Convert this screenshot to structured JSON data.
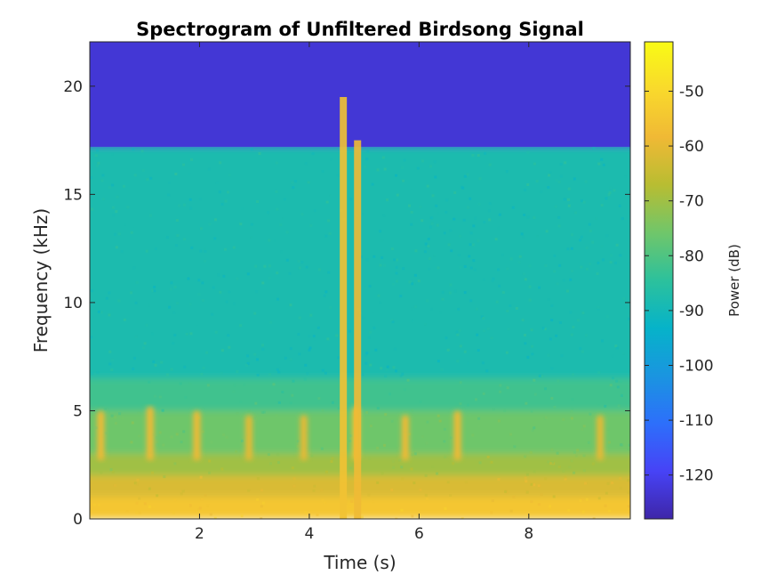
{
  "chart_data": {
    "type": "heatmap",
    "title": "Spectrogram of Unfiltered Birdsong Signal",
    "xlabel": "Time (s)",
    "ylabel": "Frequency (kHz)",
    "xlim": [
      0,
      9.85
    ],
    "ylim": [
      0,
      22.05
    ],
    "xticks": [
      2,
      4,
      6,
      8
    ],
    "xtick_labels": [
      "2",
      "4",
      "6",
      "8"
    ],
    "yticks": [
      0,
      5,
      10,
      15,
      20
    ],
    "ytick_labels": [
      "0",
      "5",
      "10",
      "15",
      "20"
    ],
    "colorbar": {
      "label": "Power (dB)",
      "colormap": "parula",
      "limits": [
        -128,
        -41
      ],
      "ticks": [
        -120,
        -110,
        -100,
        -90,
        -80,
        -70,
        -60,
        -50
      ],
      "tick_labels": [
        "-120",
        "-110",
        "-100",
        "-90",
        "-80",
        "-70",
        "-60",
        "-50"
      ],
      "colors": [
        "#3e26a8",
        "#4743f6",
        "#2d6ffb",
        "#1a95e0",
        "#06b3c9",
        "#2cc19c",
        "#70c66a",
        "#b8bd32",
        "#f0b935",
        "#f9d92c",
        "#f9fb15"
      ]
    },
    "bands": [
      {
        "freq_khz": [
          0,
          1
        ],
        "power_db": -55
      },
      {
        "freq_khz": [
          1,
          2
        ],
        "power_db": -62
      },
      {
        "freq_khz": [
          2,
          3
        ],
        "power_db": -70
      },
      {
        "freq_khz": [
          3,
          5
        ],
        "power_db": -76
      },
      {
        "freq_khz": [
          5,
          6.5
        ],
        "power_db": -82
      },
      {
        "freq_khz": [
          6.5,
          17.2
        ],
        "power_db": -88
      },
      {
        "freq_khz": [
          17.2,
          22.05
        ],
        "power_db": -123
      }
    ],
    "calls": [
      {
        "time_s": 0.2,
        "freq_khz": [
          2.7,
          5.0
        ],
        "power_db": -58
      },
      {
        "time_s": 1.1,
        "freq_khz": [
          2.7,
          5.2
        ],
        "power_db": -58
      },
      {
        "time_s": 1.95,
        "freq_khz": [
          2.7,
          5.0
        ],
        "power_db": -58
      },
      {
        "time_s": 2.9,
        "freq_khz": [
          2.7,
          4.8
        ],
        "power_db": -60
      },
      {
        "time_s": 3.9,
        "freq_khz": [
          2.7,
          4.8
        ],
        "power_db": -60
      },
      {
        "time_s": 4.85,
        "freq_khz": [
          2.7,
          5.2
        ],
        "power_db": -56
      },
      {
        "time_s": 5.75,
        "freq_khz": [
          2.7,
          4.8
        ],
        "power_db": -58
      },
      {
        "time_s": 6.7,
        "freq_khz": [
          2.7,
          5.0
        ],
        "power_db": -58
      },
      {
        "time_s": 9.3,
        "freq_khz": [
          2.7,
          4.8
        ],
        "power_db": -60
      }
    ],
    "broadband_events": [
      {
        "time_s": 4.62,
        "freq_khz": [
          0,
          19.5
        ],
        "power_db": -56
      },
      {
        "time_s": 4.88,
        "freq_khz": [
          0,
          17.5
        ],
        "power_db": -58
      }
    ]
  }
}
